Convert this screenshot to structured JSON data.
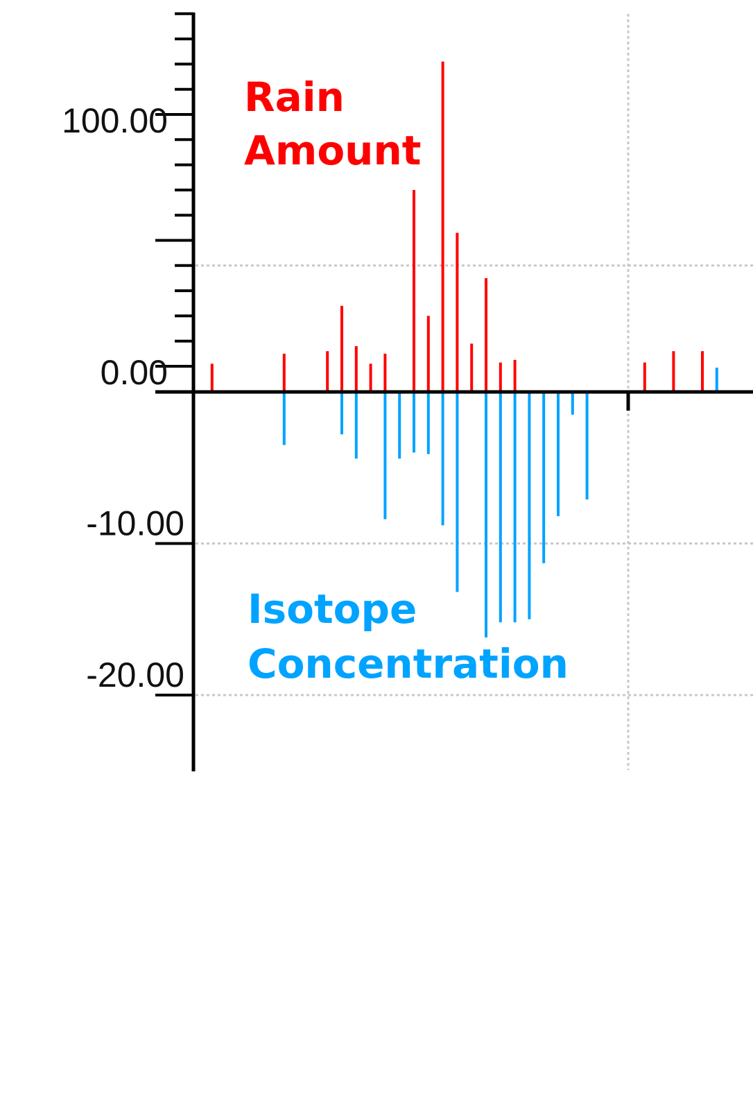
{
  "colors": {
    "rain": "#ff0000",
    "isotope": "#00a3ff",
    "axis": "#000000",
    "grid": "#c8c8c8"
  },
  "chart_data": {
    "type": "bar",
    "grid": true,
    "series": [
      {
        "name": "Rain Amount",
        "axis": "upper",
        "ylim": [
          -10,
          150
        ],
        "tick_labels": [
          "100.00",
          "0.00"
        ],
        "tick_values": [
          100,
          0
        ],
        "x": [
          1,
          6,
          9,
          10,
          11,
          12,
          13,
          15,
          16,
          17,
          18,
          19,
          20,
          21,
          22,
          31,
          33,
          35
        ],
        "values": [
          1,
          5,
          6,
          24,
          8,
          1,
          5,
          70,
          20,
          121,
          53,
          9,
          35,
          1.5,
          2.5,
          1.5,
          6,
          6
        ]
      },
      {
        "name": "Isotope Concentration",
        "axis": "lower",
        "ylim": [
          -25,
          1.5
        ],
        "tick_labels": [
          "-10.00",
          "-20.00"
        ],
        "tick_values": [
          -10,
          -20
        ],
        "x": [
          6,
          10,
          11,
          13,
          14,
          15,
          16,
          17,
          18,
          20,
          21,
          22,
          23,
          24,
          25,
          26,
          27,
          36
        ],
        "values": [
          -3.5,
          -2.8,
          -4.4,
          -8.4,
          -4.4,
          -4.0,
          -4.1,
          -8.8,
          -13.2,
          -16.2,
          -15.2,
          -15.2,
          -15.0,
          -11.3,
          -8.2,
          -1.5,
          -7.1,
          1.6
        ]
      }
    ]
  }
}
